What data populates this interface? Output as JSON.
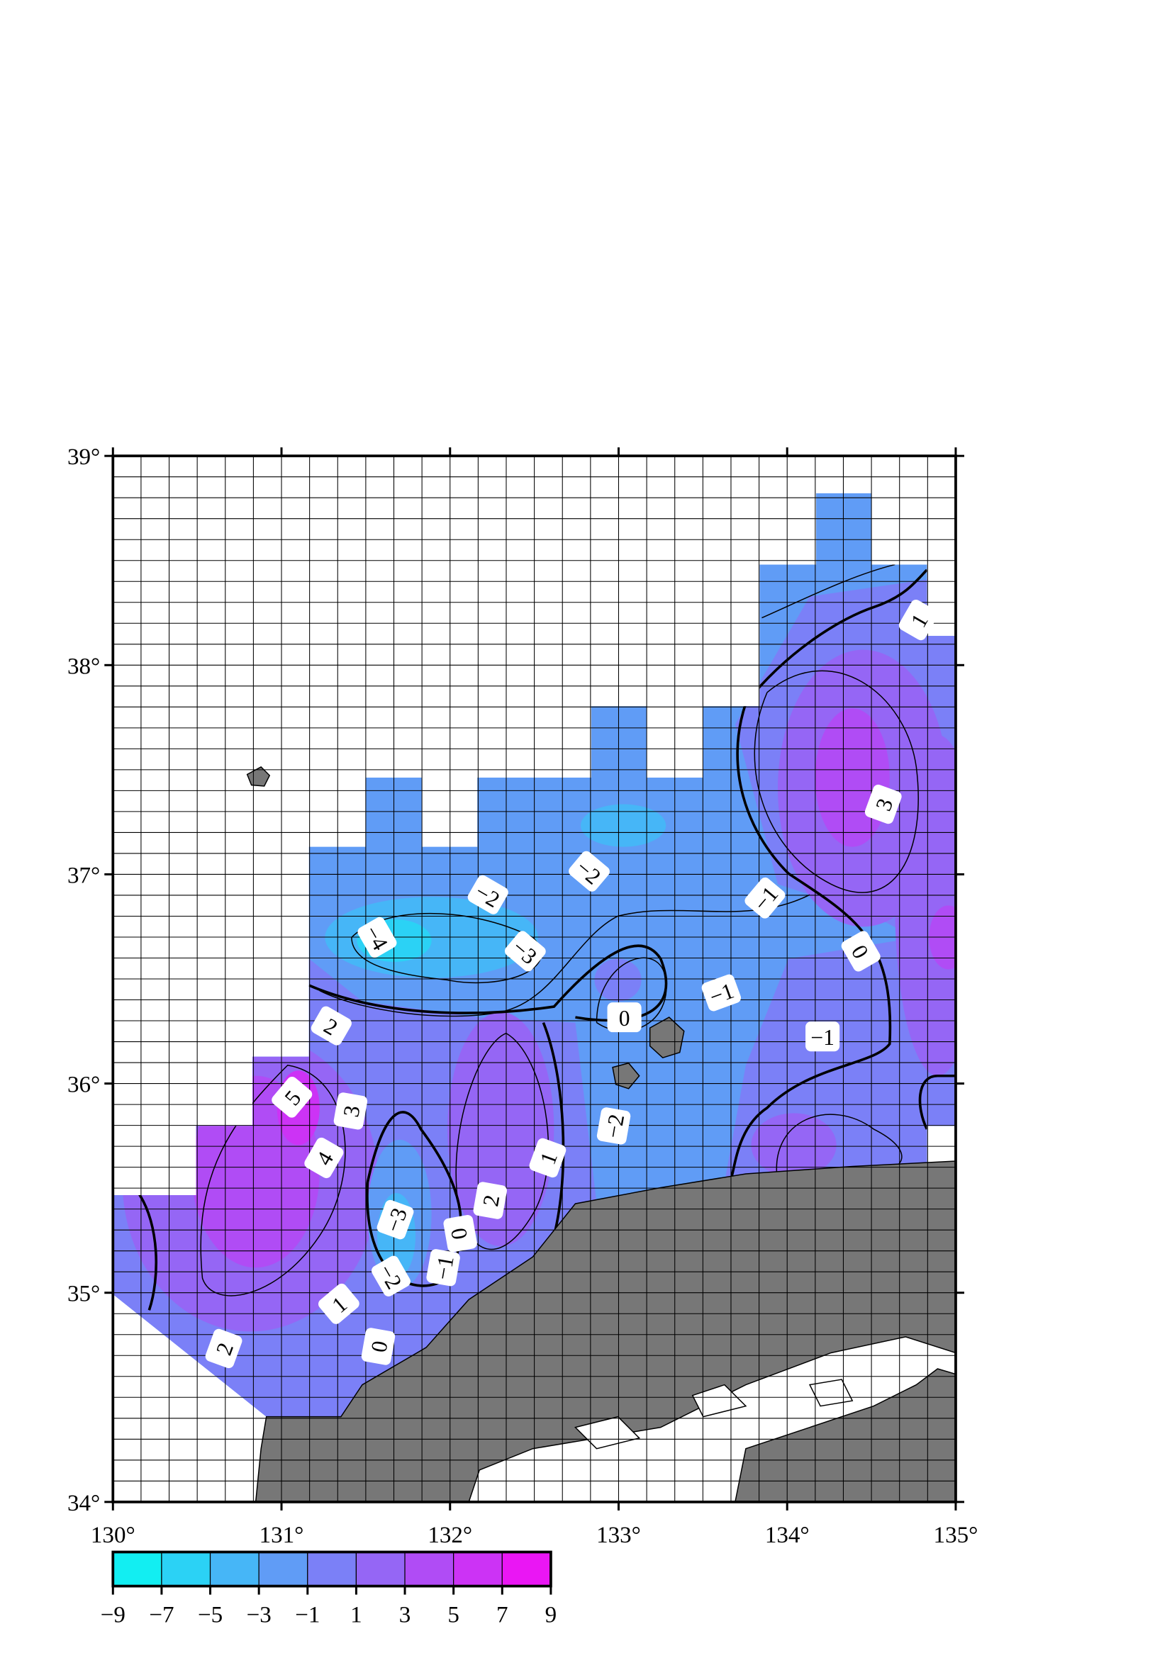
{
  "map": {
    "lon_ticks": [
      {
        "value": 130,
        "label": "130°"
      },
      {
        "value": 131,
        "label": "131°"
      },
      {
        "value": 132,
        "label": "132°"
      },
      {
        "value": 133,
        "label": "133°"
      },
      {
        "value": 134,
        "label": "134°"
      },
      {
        "value": 135,
        "label": "135°"
      }
    ],
    "lat_ticks": [
      {
        "value": 34,
        "label": "34°"
      },
      {
        "value": 35,
        "label": "35°"
      },
      {
        "value": 36,
        "label": "36°"
      },
      {
        "value": 37,
        "label": "37°"
      },
      {
        "value": 38,
        "label": "38°"
      },
      {
        "value": 39,
        "label": "39°"
      }
    ],
    "lon_lim": [
      130,
      135
    ],
    "lat_lim": [
      34,
      39
    ],
    "contour_labels": [
      "1",
      "3",
      "−1",
      "0",
      "−1",
      "−1",
      "−2",
      "−2",
      "−4",
      "−3",
      "0",
      "2",
      "5",
      "3",
      "4",
      "−2",
      "1",
      "2",
      "−3",
      "0",
      "−1",
      "−2",
      "1",
      "0",
      "2"
    ]
  },
  "colorbar": {
    "lim": [
      -9,
      9
    ],
    "colors": [
      "#12eef2",
      "#2bd2f5",
      "#46b6f7",
      "#609cf6",
      "#7b80f7",
      "#9566f5",
      "#b04cf5",
      "#cc33f5",
      "#ea16f4"
    ],
    "ticks": [
      {
        "value": -9,
        "label": "−9"
      },
      {
        "value": -7,
        "label": "−7"
      },
      {
        "value": -5,
        "label": "−5"
      },
      {
        "value": -3,
        "label": "−3"
      },
      {
        "value": -1,
        "label": "−1"
      },
      1,
      3,
      5,
      7,
      9
    ]
  }
}
